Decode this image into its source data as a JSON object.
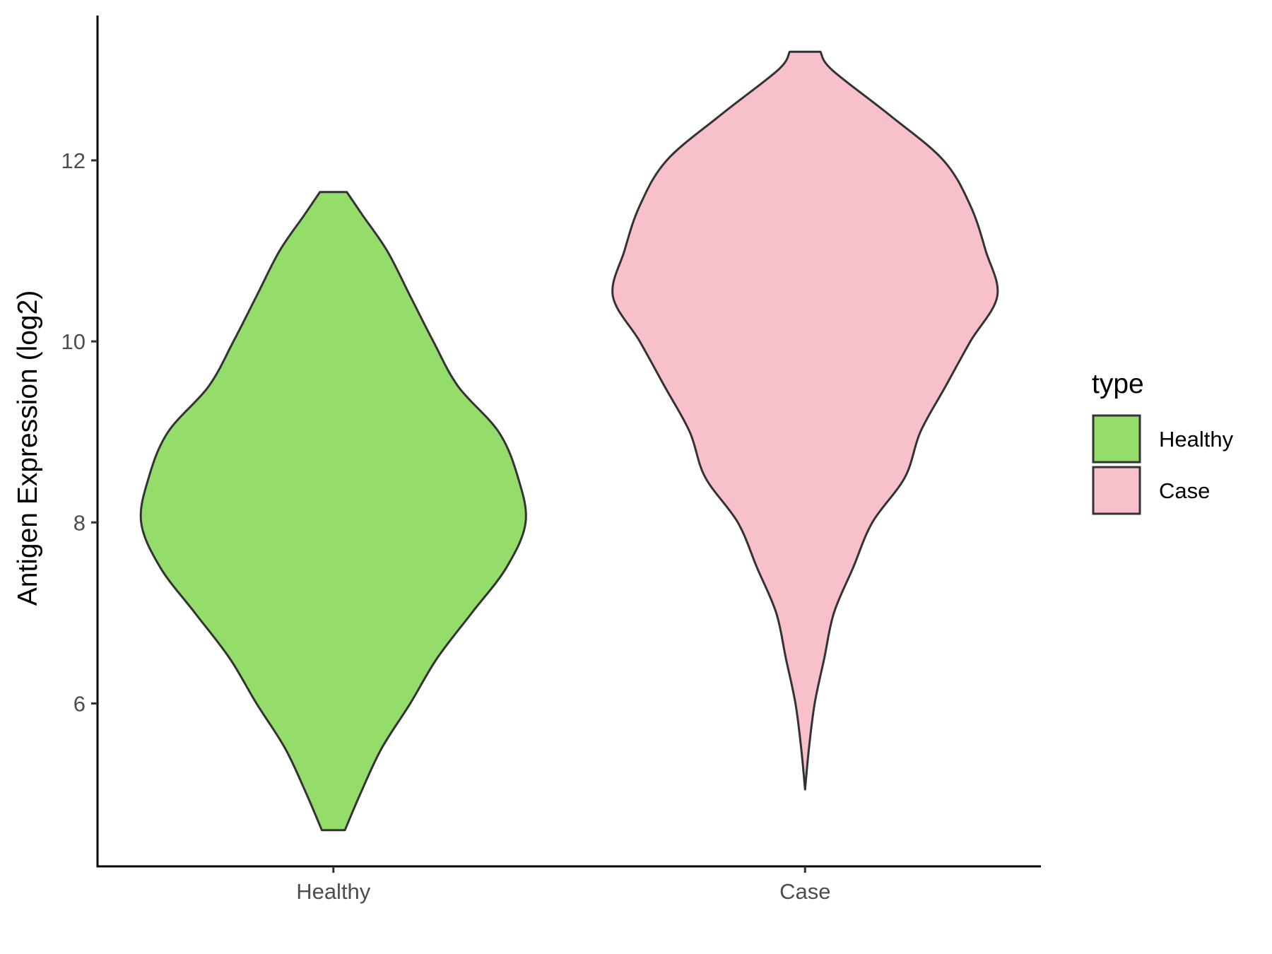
{
  "chart_data": {
    "type": "violin",
    "title": "",
    "xlabel": "",
    "ylabel": "Antigen Expression (log2)",
    "ylim": [
      4.2,
      13.6
    ],
    "yticks": [
      6,
      8,
      10,
      12
    ],
    "grid": false,
    "categories": [
      "Healthy",
      "Case"
    ],
    "legend": {
      "title": "type",
      "position": "right",
      "entries": [
        {
          "label": "Healthy",
          "color": "#94dd6b"
        },
        {
          "label": "Case",
          "color": "#f8c0cb"
        }
      ]
    },
    "series": [
      {
        "category": "Healthy",
        "color": "#94dd6b",
        "min": 4.6,
        "max": 11.65,
        "density_profile": [
          [
            4.6,
            0.06
          ],
          [
            5.0,
            0.14
          ],
          [
            5.5,
            0.25
          ],
          [
            6.0,
            0.4
          ],
          [
            6.5,
            0.54
          ],
          [
            7.0,
            0.72
          ],
          [
            7.5,
            0.9
          ],
          [
            8.0,
            1.0
          ],
          [
            8.5,
            0.96
          ],
          [
            9.0,
            0.86
          ],
          [
            9.5,
            0.65
          ],
          [
            10.0,
            0.52
          ],
          [
            10.5,
            0.4
          ],
          [
            11.0,
            0.28
          ],
          [
            11.4,
            0.15
          ],
          [
            11.65,
            0.07
          ]
        ]
      },
      {
        "category": "Case",
        "color": "#f8c0cb",
        "min": 5.05,
        "max": 13.2,
        "density_profile": [
          [
            5.05,
            0.0
          ],
          [
            5.5,
            0.02
          ],
          [
            6.0,
            0.05
          ],
          [
            6.5,
            0.1
          ],
          [
            7.0,
            0.15
          ],
          [
            7.5,
            0.25
          ],
          [
            8.0,
            0.35
          ],
          [
            8.5,
            0.52
          ],
          [
            9.0,
            0.6
          ],
          [
            9.5,
            0.73
          ],
          [
            10.0,
            0.86
          ],
          [
            10.5,
            1.0
          ],
          [
            11.0,
            0.94
          ],
          [
            11.5,
            0.86
          ],
          [
            12.0,
            0.72
          ],
          [
            12.5,
            0.44
          ],
          [
            13.0,
            0.14
          ],
          [
            13.2,
            0.08
          ]
        ]
      }
    ]
  }
}
